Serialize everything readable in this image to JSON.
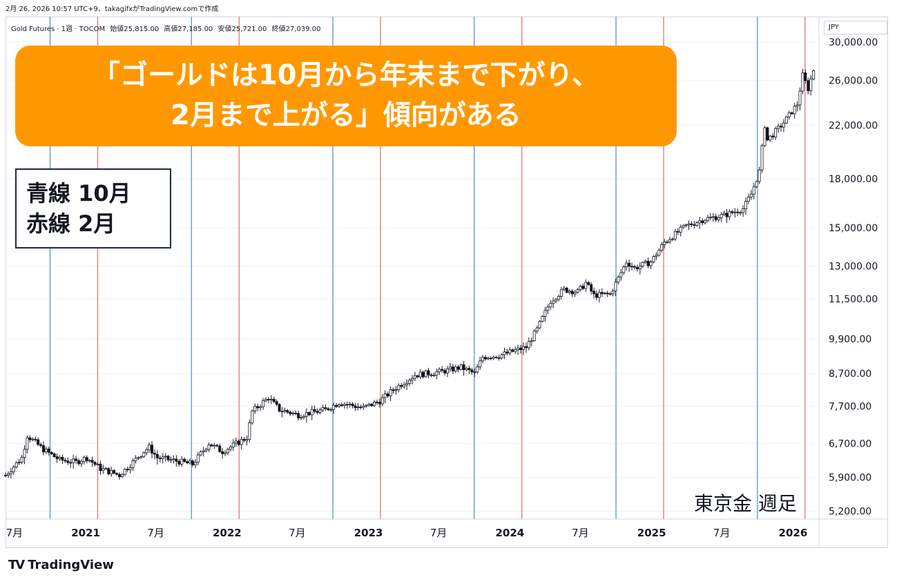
{
  "header": {
    "meta_line": "2月 26, 2026 10:57 UTC+9、takagifxがTradingView.comで作成"
  },
  "legend": {
    "symbol": "Gold Futures · 1週 · TOCOM",
    "open": "始値25,815.00",
    "high": "高値27,185.00",
    "low": "安値25,721.00",
    "close": "終値27,039.00"
  },
  "currency": "JPY",
  "headline": {
    "line1": "「ゴールドは10月から年末まで下がり、",
    "line2": "2月まで上がる」傾向がある"
  },
  "line_legend": {
    "blue": "青線 10月",
    "red": "赤線 2月"
  },
  "caption": "東京金 週足",
  "brand": "TradingView",
  "colors": {
    "headline_bg": "#ff9800",
    "blue_line": "#5b8fd9",
    "red_line": "#e57373",
    "candle_up": "#ffffff",
    "candle_down": "#131722"
  },
  "chart_data": {
    "type": "candlestick-line",
    "title": "Gold Futures · 1週 · TOCOM",
    "xlabel": "",
    "ylabel": "",
    "y_scale": "log",
    "ylim": [
      5050,
      33000
    ],
    "y_ticks": [
      {
        "value": 30000,
        "label": "30,000.00"
      },
      {
        "value": 26000,
        "label": "26,000.00"
      },
      {
        "value": 22000,
        "label": "22,000.00"
      },
      {
        "value": 18000,
        "label": "18,000.00"
      },
      {
        "value": 15000,
        "label": "15,000.00"
      },
      {
        "value": 13000,
        "label": "13,000.00"
      },
      {
        "value": 11500,
        "label": "11,500.00"
      },
      {
        "value": 9900,
        "label": "9,900.00"
      },
      {
        "value": 8700,
        "label": "8,700.00"
      },
      {
        "value": 7700,
        "label": "7,700.00"
      },
      {
        "value": 6700,
        "label": "6,700.00"
      },
      {
        "value": 5900,
        "label": "5,900.00"
      },
      {
        "value": 5200,
        "label": "5,200.00"
      }
    ],
    "x_range": [
      "2020-06-08",
      "2026-03-09"
    ],
    "x_ticks": [
      {
        "date": "2020-07-01",
        "label": "7月"
      },
      {
        "date": "2021-01-01",
        "label": "2021"
      },
      {
        "date": "2021-07-01",
        "label": "7月"
      },
      {
        "date": "2022-01-01",
        "label": "2022"
      },
      {
        "date": "2022-07-01",
        "label": "7月"
      },
      {
        "date": "2023-01-01",
        "label": "2023"
      },
      {
        "date": "2023-07-01",
        "label": "7月"
      },
      {
        "date": "2024-01-01",
        "label": "2024"
      },
      {
        "date": "2024-07-01",
        "label": "7月"
      },
      {
        "date": "2025-01-01",
        "label": "2025"
      },
      {
        "date": "2025-07-01",
        "label": "7月"
      },
      {
        "date": "2026-01-01",
        "label": "2026"
      }
    ],
    "blue_lines": [
      "2020-10-01",
      "2021-10-01",
      "2022-10-01",
      "2023-10-01",
      "2024-10-01",
      "2025-10-01"
    ],
    "red_lines": [
      "2021-02-01",
      "2022-02-01",
      "2023-02-01",
      "2024-02-01",
      "2025-02-01",
      "2026-02-01"
    ],
    "price_path": [
      {
        "date": "2020-06-08",
        "close": 5950
      },
      {
        "date": "2020-07-20",
        "close": 6350
      },
      {
        "date": "2020-08-03",
        "close": 6900
      },
      {
        "date": "2020-09-14",
        "close": 6550
      },
      {
        "date": "2020-10-26",
        "close": 6300
      },
      {
        "date": "2020-12-07",
        "close": 6250
      },
      {
        "date": "2021-01-04",
        "close": 6350
      },
      {
        "date": "2021-02-08",
        "close": 6100
      },
      {
        "date": "2021-03-29",
        "close": 5950
      },
      {
        "date": "2021-05-31",
        "close": 6500
      },
      {
        "date": "2021-06-14",
        "close": 6600
      },
      {
        "date": "2021-07-05",
        "close": 6350
      },
      {
        "date": "2021-08-09",
        "close": 6300
      },
      {
        "date": "2021-10-04",
        "close": 6200
      },
      {
        "date": "2021-11-15",
        "close": 6700
      },
      {
        "date": "2021-12-20",
        "close": 6500
      },
      {
        "date": "2022-02-21",
        "close": 6850
      },
      {
        "date": "2022-03-07",
        "close": 7550
      },
      {
        "date": "2022-04-18",
        "close": 7950
      },
      {
        "date": "2022-05-16",
        "close": 7600
      },
      {
        "date": "2022-07-04",
        "close": 7450
      },
      {
        "date": "2022-09-12",
        "close": 7600
      },
      {
        "date": "2022-10-17",
        "close": 7800
      },
      {
        "date": "2022-12-19",
        "close": 7650
      },
      {
        "date": "2023-01-30",
        "close": 7850
      },
      {
        "date": "2023-03-13",
        "close": 8250
      },
      {
        "date": "2023-05-01",
        "close": 8650
      },
      {
        "date": "2023-07-03",
        "close": 8750
      },
      {
        "date": "2023-08-28",
        "close": 8900
      },
      {
        "date": "2023-10-02",
        "close": 8700
      },
      {
        "date": "2023-10-23",
        "close": 9250
      },
      {
        "date": "2023-12-04",
        "close": 9300
      },
      {
        "date": "2024-02-12",
        "close": 9600
      },
      {
        "date": "2024-03-11",
        "close": 10250
      },
      {
        "date": "2024-04-15",
        "close": 11400
      },
      {
        "date": "2024-05-20",
        "close": 11900
      },
      {
        "date": "2024-06-24",
        "close": 11800
      },
      {
        "date": "2024-07-15",
        "close": 12200
      },
      {
        "date": "2024-08-05",
        "close": 11650
      },
      {
        "date": "2024-09-16",
        "close": 11700
      },
      {
        "date": "2024-10-28",
        "close": 13200
      },
      {
        "date": "2024-11-18",
        "close": 12900
      },
      {
        "date": "2024-12-30",
        "close": 13200
      },
      {
        "date": "2025-02-03",
        "close": 14200
      },
      {
        "date": "2025-03-31",
        "close": 15100
      },
      {
        "date": "2025-05-19",
        "close": 15500
      },
      {
        "date": "2025-07-07",
        "close": 15700
      },
      {
        "date": "2025-08-25",
        "close": 16100
      },
      {
        "date": "2025-09-15",
        "close": 17000
      },
      {
        "date": "2025-10-06",
        "close": 18500
      },
      {
        "date": "2025-10-20",
        "close": 22000
      },
      {
        "date": "2025-10-27",
        "close": 20800
      },
      {
        "date": "2025-12-08",
        "close": 22200
      },
      {
        "date": "2026-01-12",
        "close": 23800
      },
      {
        "date": "2026-01-26",
        "close": 26500
      },
      {
        "date": "2026-02-09",
        "close": 25200
      },
      {
        "date": "2026-02-23",
        "close": 27039
      }
    ]
  }
}
